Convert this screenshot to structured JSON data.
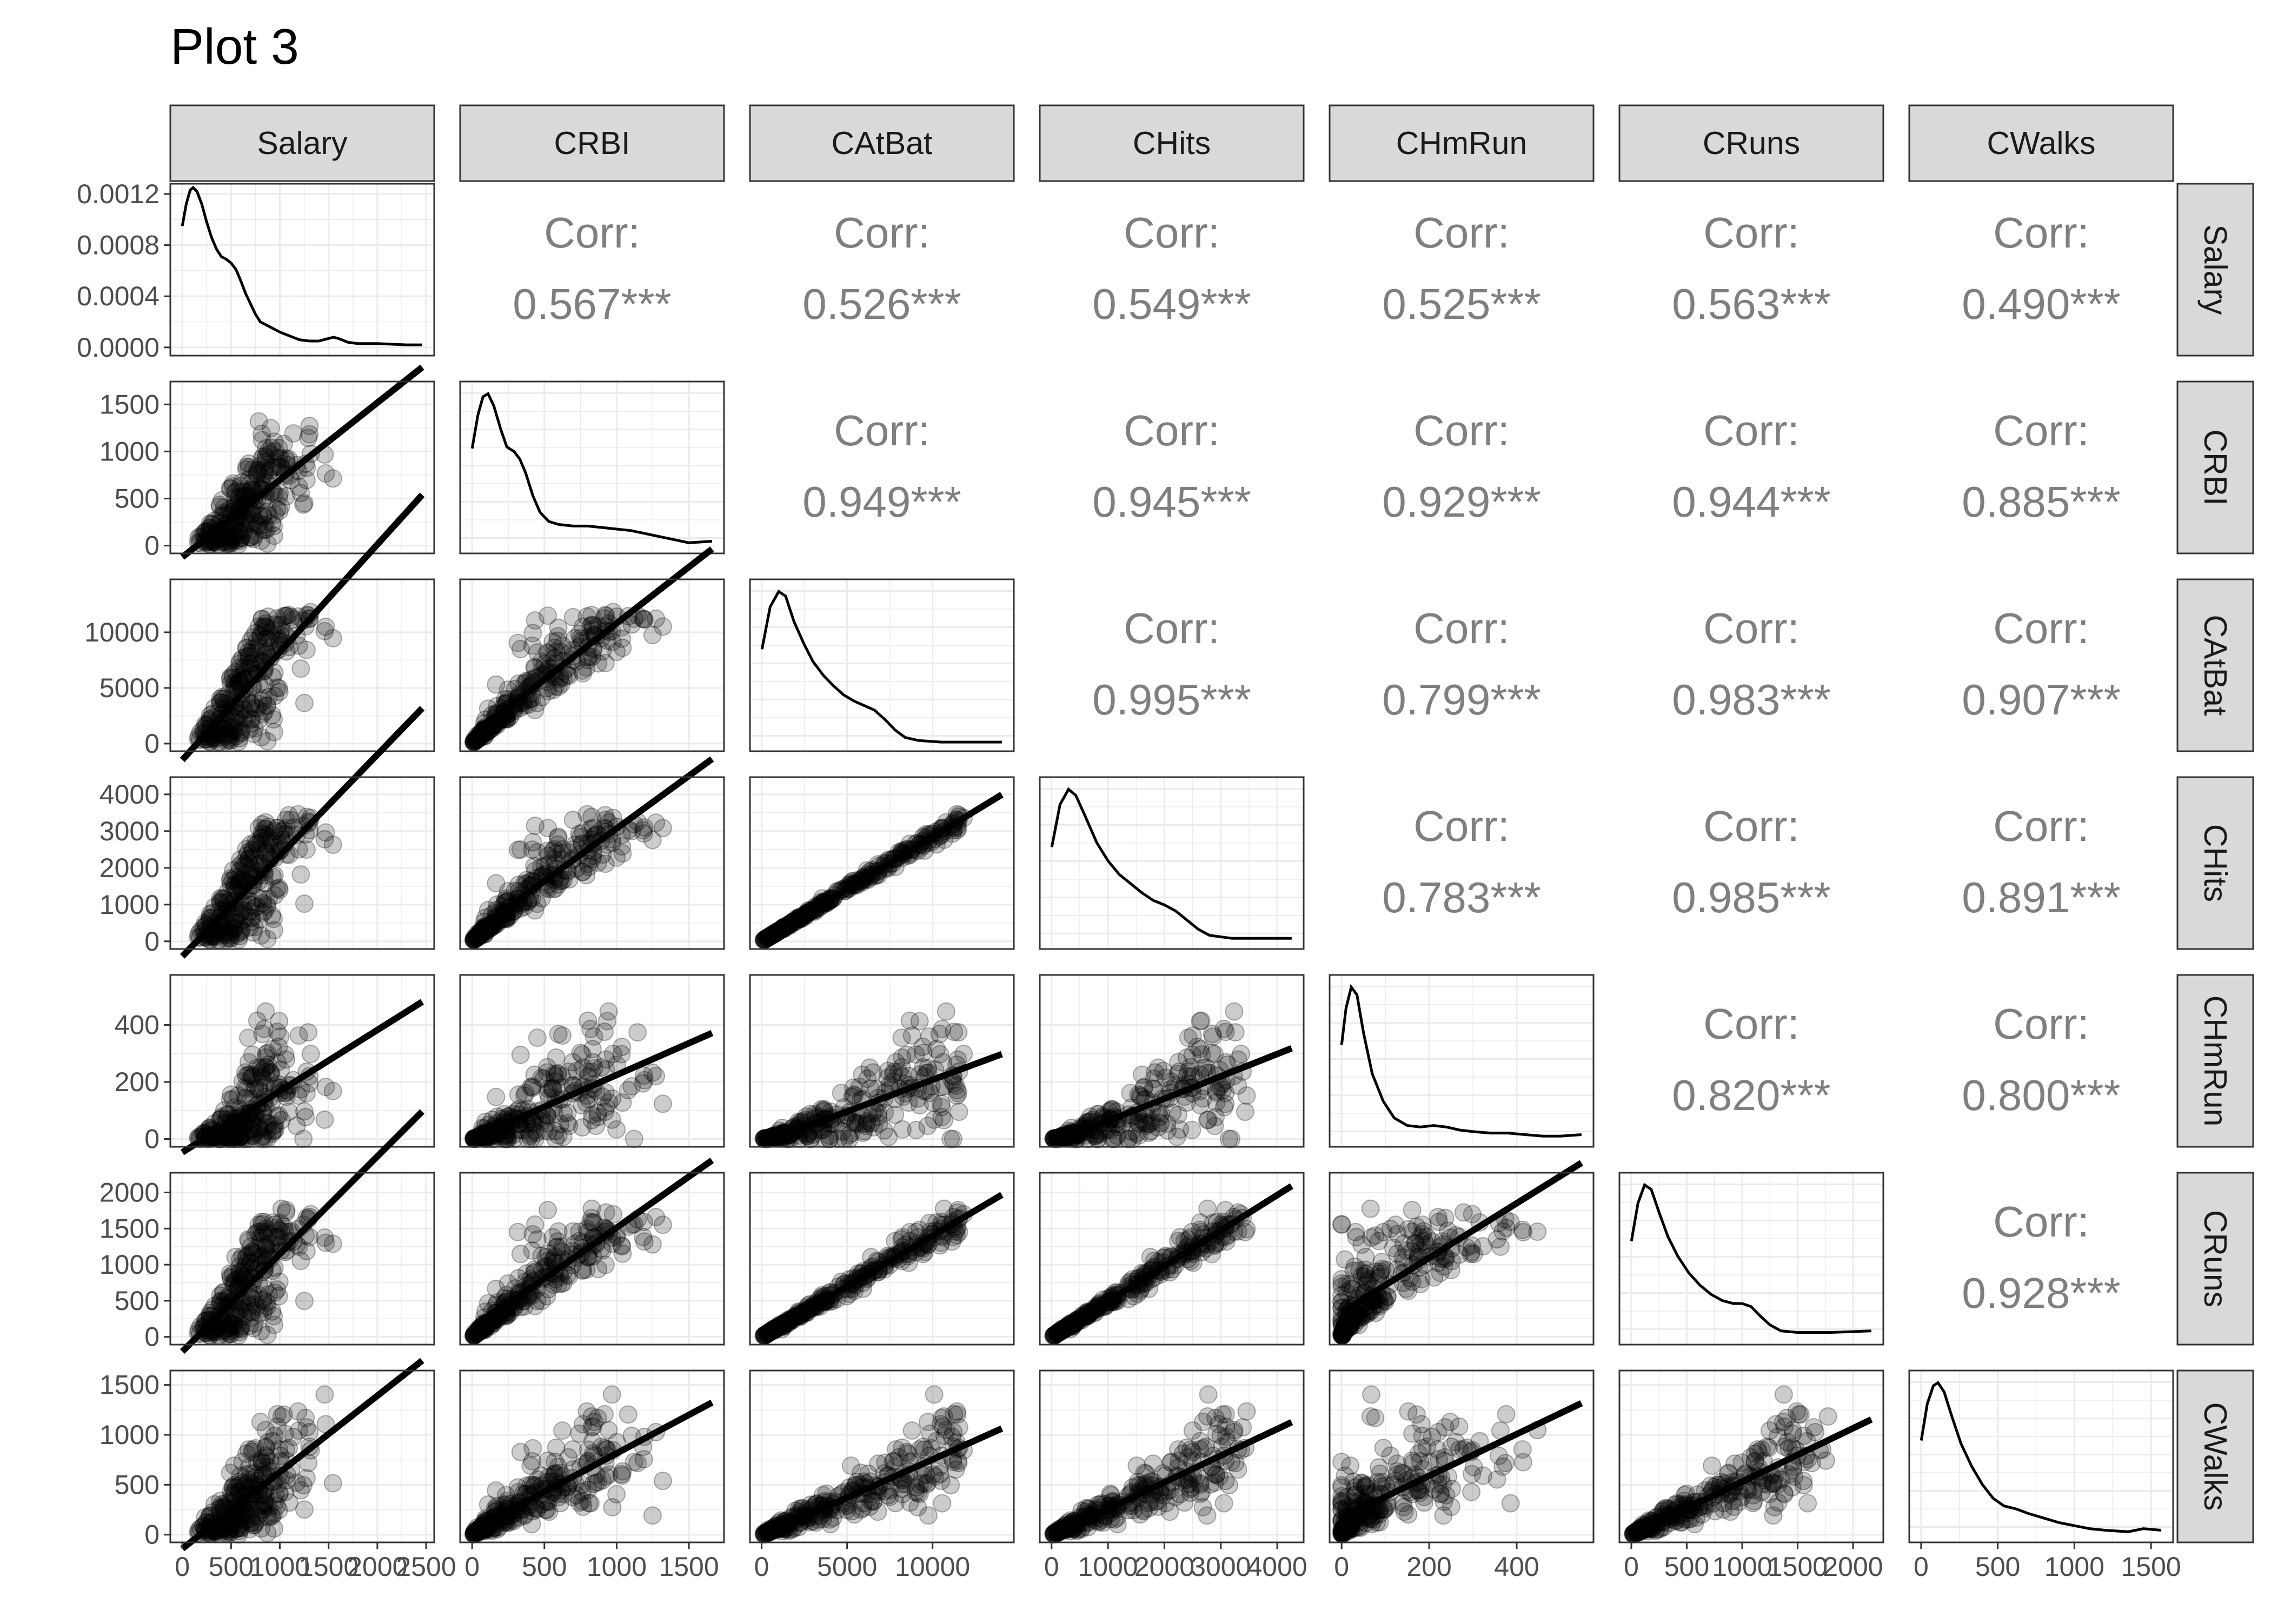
{
  "chart_data": {
    "type": "scatter",
    "title": "Plot 3",
    "variables": [
      "Salary",
      "CRBI",
      "CAtBat",
      "CHits",
      "CHmRun",
      "CRuns",
      "CWalks"
    ],
    "corr_label": "Corr:",
    "correlations": [
      {
        "row": "Salary",
        "col": "CRBI",
        "value": "0.567***"
      },
      {
        "row": "Salary",
        "col": "CAtBat",
        "value": "0.526***"
      },
      {
        "row": "Salary",
        "col": "CHits",
        "value": "0.549***"
      },
      {
        "row": "Salary",
        "col": "CHmRun",
        "value": "0.525***"
      },
      {
        "row": "Salary",
        "col": "CRuns",
        "value": "0.563***"
      },
      {
        "row": "Salary",
        "col": "CWalks",
        "value": "0.490***"
      },
      {
        "row": "CRBI",
        "col": "CAtBat",
        "value": "0.949***"
      },
      {
        "row": "CRBI",
        "col": "CHits",
        "value": "0.945***"
      },
      {
        "row": "CRBI",
        "col": "CHmRun",
        "value": "0.929***"
      },
      {
        "row": "CRBI",
        "col": "CRuns",
        "value": "0.944***"
      },
      {
        "row": "CRBI",
        "col": "CWalks",
        "value": "0.885***"
      },
      {
        "row": "CAtBat",
        "col": "CHits",
        "value": "0.995***"
      },
      {
        "row": "CAtBat",
        "col": "CHmRun",
        "value": "0.799***"
      },
      {
        "row": "CAtBat",
        "col": "CRuns",
        "value": "0.983***"
      },
      {
        "row": "CAtBat",
        "col": "CWalks",
        "value": "0.907***"
      },
      {
        "row": "CHits",
        "col": "CHmRun",
        "value": "0.783***"
      },
      {
        "row": "CHits",
        "col": "CRuns",
        "value": "0.985***"
      },
      {
        "row": "CHits",
        "col": "CWalks",
        "value": "0.891***"
      },
      {
        "row": "CHmRun",
        "col": "CRuns",
        "value": "0.820***"
      },
      {
        "row": "CHmRun",
        "col": "CWalks",
        "value": "0.800***"
      },
      {
        "row": "CRuns",
        "col": "CWalks",
        "value": "0.928***"
      }
    ],
    "ranges": {
      "Salary": [
        0,
        2460
      ],
      "CRBI": [
        0,
        1660
      ],
      "CAtBat": [
        19,
        14053
      ],
      "CHits": [
        4,
        4256
      ],
      "CHmRun": [
        0,
        548
      ],
      "CRuns": [
        1,
        2165
      ],
      "CWalks": [
        1,
        1566
      ]
    },
    "x_ticks": {
      "Salary": [
        "0",
        "500",
        "1000",
        "1500",
        "2000",
        "2500"
      ],
      "CRBI": [
        "0",
        "500",
        "1000",
        "1500"
      ],
      "CAtBat": [
        "0",
        "5000",
        "10000"
      ],
      "CHits": [
        "0",
        "1000",
        "2000",
        "3000",
        "4000"
      ],
      "CHmRun": [
        "0",
        "200",
        "400"
      ],
      "CRuns": [
        "0",
        "500",
        "1000",
        "1500",
        "2000"
      ],
      "CWalks": [
        "0",
        "500",
        "1000",
        "1500"
      ]
    },
    "y_ticks": {
      "Salary_density": [
        "0.0000",
        "0.0004",
        "0.0008",
        "0.0012"
      ],
      "CRBI": [
        "0",
        "500",
        "1000",
        "1500"
      ],
      "CAtBat": [
        "0",
        "5000",
        "10000"
      ],
      "CHits": [
        "0",
        "1000",
        "2000",
        "3000",
        "4000"
      ],
      "CHmRun": [
        "0",
        "200",
        "400"
      ],
      "CRuns": [
        "0",
        "500",
        "1000",
        "1500",
        "2000"
      ],
      "CWalks": [
        "0",
        "500",
        "1000",
        "1500"
      ]
    },
    "salary_density_ylim": [
      0,
      0.00128
    ],
    "densities": {
      "Salary": [
        [
          0,
          0.00095
        ],
        [
          40,
          0.00112
        ],
        [
          80,
          0.00123
        ],
        [
          110,
          0.00125
        ],
        [
          150,
          0.00122
        ],
        [
          200,
          0.00112
        ],
        [
          250,
          0.00098
        ],
        [
          300,
          0.00086
        ],
        [
          350,
          0.00077
        ],
        [
          400,
          0.00071
        ],
        [
          450,
          0.00069
        ],
        [
          500,
          0.00066
        ],
        [
          550,
          0.00061
        ],
        [
          600,
          0.00052
        ],
        [
          650,
          0.00042
        ],
        [
          700,
          0.00034
        ],
        [
          750,
          0.00026
        ],
        [
          800,
          0.0002
        ],
        [
          900,
          0.00016
        ],
        [
          1000,
          0.00012
        ],
        [
          1100,
          9e-05
        ],
        [
          1200,
          6e-05
        ],
        [
          1300,
          5e-05
        ],
        [
          1400,
          5e-05
        ],
        [
          1500,
          7e-05
        ],
        [
          1550,
          8e-05
        ],
        [
          1600,
          7e-05
        ],
        [
          1700,
          4e-05
        ],
        [
          1800,
          3e-05
        ],
        [
          2000,
          3e-05
        ],
        [
          2300,
          2e-05
        ],
        [
          2460,
          2e-05
        ]
      ],
      "CRBI": [
        [
          0,
          0.64
        ],
        [
          40,
          0.86
        ],
        [
          75,
          0.98
        ],
        [
          110,
          1.0
        ],
        [
          150,
          0.92
        ],
        [
          200,
          0.76
        ],
        [
          240,
          0.65
        ],
        [
          290,
          0.62
        ],
        [
          330,
          0.57
        ],
        [
          370,
          0.48
        ],
        [
          420,
          0.33
        ],
        [
          470,
          0.22
        ],
        [
          530,
          0.16
        ],
        [
          600,
          0.14
        ],
        [
          700,
          0.13
        ],
        [
          800,
          0.13
        ],
        [
          900,
          0.12
        ],
        [
          1000,
          0.11
        ],
        [
          1100,
          0.1
        ],
        [
          1200,
          0.08
        ],
        [
          1300,
          0.06
        ],
        [
          1400,
          0.04
        ],
        [
          1500,
          0.02
        ],
        [
          1660,
          0.03
        ]
      ],
      "CAtBat": [
        [
          19,
          0.62
        ],
        [
          500,
          0.9
        ],
        [
          1000,
          1.0
        ],
        [
          1400,
          0.97
        ],
        [
          1900,
          0.8
        ],
        [
          2500,
          0.65
        ],
        [
          3000,
          0.54
        ],
        [
          3600,
          0.45
        ],
        [
          4200,
          0.38
        ],
        [
          4800,
          0.32
        ],
        [
          5400,
          0.28
        ],
        [
          6000,
          0.25
        ],
        [
          6600,
          0.22
        ],
        [
          7200,
          0.16
        ],
        [
          7800,
          0.09
        ],
        [
          8400,
          0.04
        ],
        [
          9200,
          0.02
        ],
        [
          10500,
          0.01
        ],
        [
          12000,
          0.01
        ],
        [
          14053,
          0.01
        ]
      ],
      "CHits": [
        [
          4,
          0.62
        ],
        [
          150,
          0.9
        ],
        [
          300,
          1.0
        ],
        [
          430,
          0.96
        ],
        [
          600,
          0.82
        ],
        [
          800,
          0.65
        ],
        [
          1000,
          0.53
        ],
        [
          1200,
          0.44
        ],
        [
          1400,
          0.38
        ],
        [
          1600,
          0.32
        ],
        [
          1800,
          0.27
        ],
        [
          2000,
          0.24
        ],
        [
          2200,
          0.2
        ],
        [
          2400,
          0.14
        ],
        [
          2600,
          0.08
        ],
        [
          2800,
          0.04
        ],
        [
          3200,
          0.02
        ],
        [
          3600,
          0.02
        ],
        [
          4256,
          0.02
        ]
      ],
      "CHmRun": [
        [
          0,
          0.62
        ],
        [
          10,
          0.86
        ],
        [
          22,
          1.0
        ],
        [
          35,
          0.95
        ],
        [
          50,
          0.7
        ],
        [
          70,
          0.43
        ],
        [
          95,
          0.25
        ],
        [
          120,
          0.14
        ],
        [
          150,
          0.09
        ],
        [
          180,
          0.08
        ],
        [
          210,
          0.09
        ],
        [
          240,
          0.08
        ],
        [
          270,
          0.06
        ],
        [
          300,
          0.05
        ],
        [
          340,
          0.04
        ],
        [
          380,
          0.04
        ],
        [
          420,
          0.03
        ],
        [
          460,
          0.02
        ],
        [
          500,
          0.02
        ],
        [
          548,
          0.03
        ]
      ],
      "CRuns": [
        [
          1,
          0.63
        ],
        [
          60,
          0.88
        ],
        [
          120,
          1.0
        ],
        [
          180,
          0.97
        ],
        [
          250,
          0.82
        ],
        [
          330,
          0.66
        ],
        [
          420,
          0.53
        ],
        [
          520,
          0.42
        ],
        [
          620,
          0.34
        ],
        [
          720,
          0.28
        ],
        [
          820,
          0.24
        ],
        [
          920,
          0.22
        ],
        [
          1000,
          0.22
        ],
        [
          1080,
          0.2
        ],
        [
          1160,
          0.14
        ],
        [
          1250,
          0.08
        ],
        [
          1350,
          0.04
        ],
        [
          1500,
          0.03
        ],
        [
          1800,
          0.03
        ],
        [
          2165,
          0.04
        ]
      ],
      "CWalks": [
        [
          1,
          0.62
        ],
        [
          40,
          0.86
        ],
        [
          80,
          0.98
        ],
        [
          110,
          1.0
        ],
        [
          150,
          0.94
        ],
        [
          200,
          0.78
        ],
        [
          260,
          0.6
        ],
        [
          330,
          0.45
        ],
        [
          400,
          0.33
        ],
        [
          470,
          0.24
        ],
        [
          540,
          0.19
        ],
        [
          620,
          0.17
        ],
        [
          700,
          0.14
        ],
        [
          800,
          0.11
        ],
        [
          900,
          0.08
        ],
        [
          1000,
          0.06
        ],
        [
          1100,
          0.04
        ],
        [
          1200,
          0.03
        ],
        [
          1350,
          0.02
        ],
        [
          1450,
          0.04
        ],
        [
          1566,
          0.03
        ]
      ]
    },
    "n_points": 263,
    "point_color": "#000000",
    "point_alpha": 0.2,
    "fit": "lm",
    "background": "#ffffff",
    "grid_color": "#ebebeb",
    "strip_fill": "#d9d9d9",
    "corr_text_color": "#7f7f7f"
  }
}
